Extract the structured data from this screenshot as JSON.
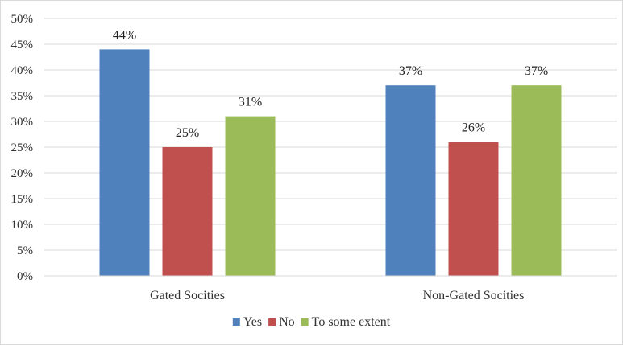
{
  "chart_data": {
    "type": "bar",
    "categories": [
      "Gated Socities",
      "Non-Gated Socities"
    ],
    "series": [
      {
        "name": "Yes",
        "values": [
          44,
          37
        ],
        "labels": [
          "44%",
          "37%"
        ],
        "color": "#4f81bd"
      },
      {
        "name": "No",
        "values": [
          25,
          26
        ],
        "labels": [
          "25%",
          "26%"
        ],
        "color": "#c0504d"
      },
      {
        "name": "To some extent",
        "values": [
          31,
          37
        ],
        "labels": [
          "31%",
          "37%"
        ],
        "color": "#9bbb59"
      }
    ],
    "yticks": [
      "0%",
      "5%",
      "10%",
      "15%",
      "20%",
      "25%",
      "30%",
      "35%",
      "40%",
      "45%",
      "50%"
    ],
    "ylim": [
      0,
      50
    ],
    "grid": true,
    "legend": "bottom",
    "border_color": "#d9d9d9",
    "grid_color": "#d9d9d9"
  }
}
